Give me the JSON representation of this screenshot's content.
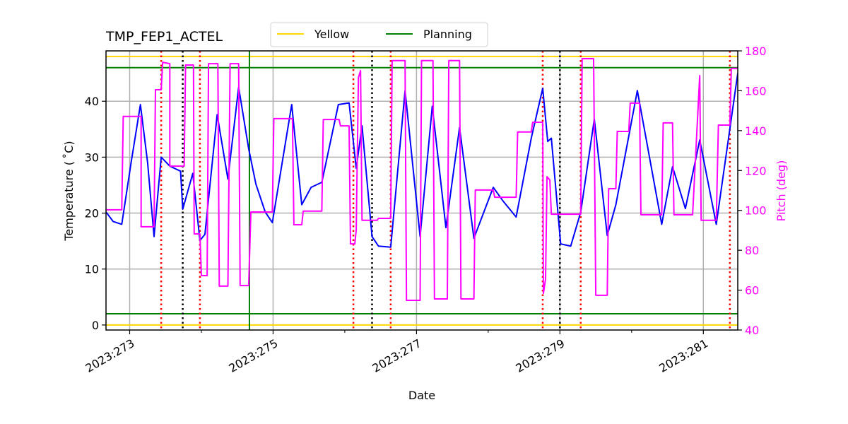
{
  "chart_data": {
    "type": "line",
    "title": "TMP_FEP1_ACTEL",
    "xlabel": "Date",
    "ylabel": "Temperature ($^\\circ$C)",
    "ylabel_display": "Temperature ( ˚C)",
    "y2label": "Pitch (deg)",
    "xlim": [
      272.67,
      281.48
    ],
    "ylim": [
      -0.9,
      49
    ],
    "y2lim": [
      40,
      180
    ],
    "xticks": [
      273,
      275,
      277,
      279,
      281
    ],
    "xtick_labels": [
      "2023:273",
      "2023:275",
      "2023:277",
      "2023:279",
      "2023:281"
    ],
    "xminor_ticks": [
      274,
      276,
      278,
      280
    ],
    "yticks": [
      0,
      10,
      20,
      30,
      40
    ],
    "y2ticks": [
      40,
      60,
      80,
      100,
      120,
      140,
      160,
      180
    ],
    "grid": true,
    "legend": {
      "placement": "top-center",
      "entries": [
        {
          "name": "Yellow",
          "color": "#ffd700"
        },
        {
          "name": "Planning",
          "color": "#008000"
        }
      ]
    },
    "limit_lines": [
      {
        "name": "Yellow",
        "color": "#ffd700",
        "values": [
          0,
          48
        ]
      },
      {
        "name": "Planning",
        "color": "#008000",
        "values": [
          2,
          46
        ]
      }
    ],
    "vlines": {
      "red_dotted": [
        273.44,
        273.98,
        276.12,
        276.64,
        278.76,
        279.29,
        281.37
      ],
      "black_dotted": [
        273.74,
        276.38,
        279.0
      ],
      "green_solid": [
        274.67
      ]
    },
    "colors": {
      "temperature": "#0000ff",
      "pitch": "#ff00ff",
      "red": "#ff0000",
      "black": "#000000",
      "green": "#008000",
      "grid": "#b0b0b0"
    },
    "series": [
      {
        "axis": "left",
        "color": "#0000ff",
        "x": [
          272.67,
          272.77,
          272.89,
          273.02,
          273.15,
          273.25,
          273.34,
          273.44,
          273.56,
          273.71,
          273.74,
          273.88,
          273.98,
          274.05,
          274.22,
          274.37,
          274.52,
          274.66,
          274.76,
          274.89,
          274.99,
          275.26,
          275.4,
          275.53,
          275.68,
          275.91,
          276.06,
          276.16,
          276.24,
          276.38,
          276.47,
          276.64,
          276.84,
          277.05,
          277.22,
          277.41,
          277.6,
          277.8,
          278.07,
          278.21,
          278.39,
          278.6,
          278.76,
          278.83,
          278.88,
          279.01,
          279.15,
          279.29,
          279.48,
          279.66,
          279.78,
          280.08,
          280.42,
          280.57,
          280.75,
          280.95,
          281.18,
          281.48
        ],
        "y": [
          20.2,
          18.5,
          18.0,
          29.0,
          39.4,
          29.0,
          15.8,
          30.0,
          28.4,
          27.5,
          20.7,
          27.1,
          15.1,
          16.2,
          37.6,
          26.1,
          42.5,
          31.5,
          25.2,
          20.2,
          18.3,
          39.4,
          21.5,
          24.6,
          25.5,
          39.4,
          39.7,
          28.0,
          35.6,
          15.8,
          14.1,
          13.9,
          41.9,
          15.8,
          39.1,
          17.4,
          35.3,
          15.5,
          24.6,
          22.1,
          19.3,
          33.4,
          42.3,
          32.8,
          33.4,
          14.5,
          14.1,
          20.2,
          36.8,
          16.0,
          21.5,
          41.9,
          18.0,
          28.3,
          20.8,
          33.1,
          18.0,
          45.0
        ]
      },
      {
        "axis": "right",
        "color": "#ff00ff",
        "x": [
          272.67,
          272.89,
          272.91,
          273.16,
          273.16,
          273.34,
          273.36,
          273.44,
          273.46,
          273.56,
          273.56,
          273.76,
          273.78,
          273.89,
          273.9,
          273.98,
          274.0,
          274.08,
          274.1,
          274.23,
          274.25,
          274.37,
          274.4,
          274.52,
          274.54,
          274.66,
          274.69,
          274.99,
          275.01,
          275.27,
          275.29,
          275.4,
          275.42,
          275.68,
          275.7,
          275.92,
          275.94,
          276.06,
          276.08,
          276.14,
          276.16,
          276.19,
          276.22,
          276.24,
          276.45,
          276.47,
          276.64,
          276.66,
          276.84,
          276.86,
          277.05,
          277.07,
          277.23,
          277.25,
          277.43,
          277.45,
          277.6,
          277.62,
          277.8,
          277.82,
          278.07,
          278.09,
          278.39,
          278.41,
          278.6,
          278.62,
          278.76,
          278.77,
          278.8,
          278.82,
          278.86,
          278.88,
          279.29,
          279.31,
          279.47,
          279.5,
          279.66,
          279.68,
          279.78,
          279.8,
          279.96,
          279.98,
          280.11,
          280.13,
          280.42,
          280.44,
          280.57,
          280.59,
          280.85,
          280.95,
          280.97,
          281.18,
          281.21,
          281.37,
          281.39,
          281.48
        ],
        "y": [
          100.3,
          100.3,
          147.1,
          147.1,
          91.8,
          91.8,
          160.5,
          160.5,
          174.3,
          173.6,
          122.2,
          122.2,
          172.9,
          172.9,
          88.2,
          88.2,
          67.3,
          67.3,
          173.6,
          173.6,
          62.0,
          62.0,
          173.6,
          173.6,
          62.3,
          62.3,
          99.2,
          99.2,
          146.0,
          146.0,
          92.8,
          92.8,
          99.6,
          99.6,
          145.6,
          145.6,
          142.4,
          142.4,
          83.2,
          83.2,
          90.3,
          166.6,
          170.1,
          95.0,
          95.0,
          96.0,
          96.0,
          175.1,
          175.1,
          54.9,
          54.9,
          175.1,
          175.1,
          55.6,
          55.6,
          175.1,
          175.1,
          55.6,
          55.6,
          110.2,
          110.2,
          106.6,
          106.6,
          139.3,
          139.3,
          144.2,
          144.2,
          58.4,
          65.5,
          116.9,
          115.2,
          98.1,
          98.1,
          176.1,
          176.1,
          57.4,
          57.4,
          110.9,
          110.9,
          139.6,
          139.6,
          153.8,
          153.8,
          97.8,
          97.8,
          143.9,
          143.9,
          97.8,
          97.8,
          167.6,
          95.0,
          95.0,
          142.8,
          142.8,
          171.2,
          171.2
        ]
      }
    ]
  }
}
